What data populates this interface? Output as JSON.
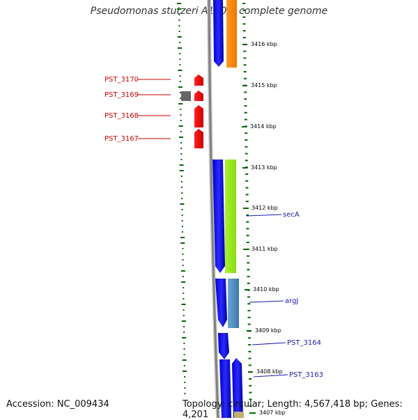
{
  "title": "Pseudomonas stutzeri A1501, complete genome",
  "footer": {
    "accession": "Accession: NC_009434",
    "topology": "Topology: circular; Length: 4,567,418 bp; Genes: 4,201"
  },
  "scale_labels": [
    "3416 kbp",
    "3415 kbp",
    "3414 kbp",
    "3413 kbp",
    "3412 kbp",
    "3411 kbp",
    "3410 kbp",
    "3409 kbp",
    "3408 kbp",
    "3407 kbp"
  ],
  "gene_labels_left": [
    "PST_3170",
    "PST_3169",
    "PST_3168",
    "PST_3167"
  ],
  "gene_labels_right": [
    "secA",
    "argJ",
    "PST_3164",
    "PST_3163"
  ],
  "colors": {
    "forward_gene": "#0000ee",
    "reverse_gene_orange": "#ff8800",
    "reverse_gene_green": "#99ee22",
    "reverse_gene_steel": "#4a8ab8",
    "hit_red": "#ee0000",
    "hit_grey": "#666666",
    "backbone": "#888888",
    "gc_dots": "#006600"
  }
}
